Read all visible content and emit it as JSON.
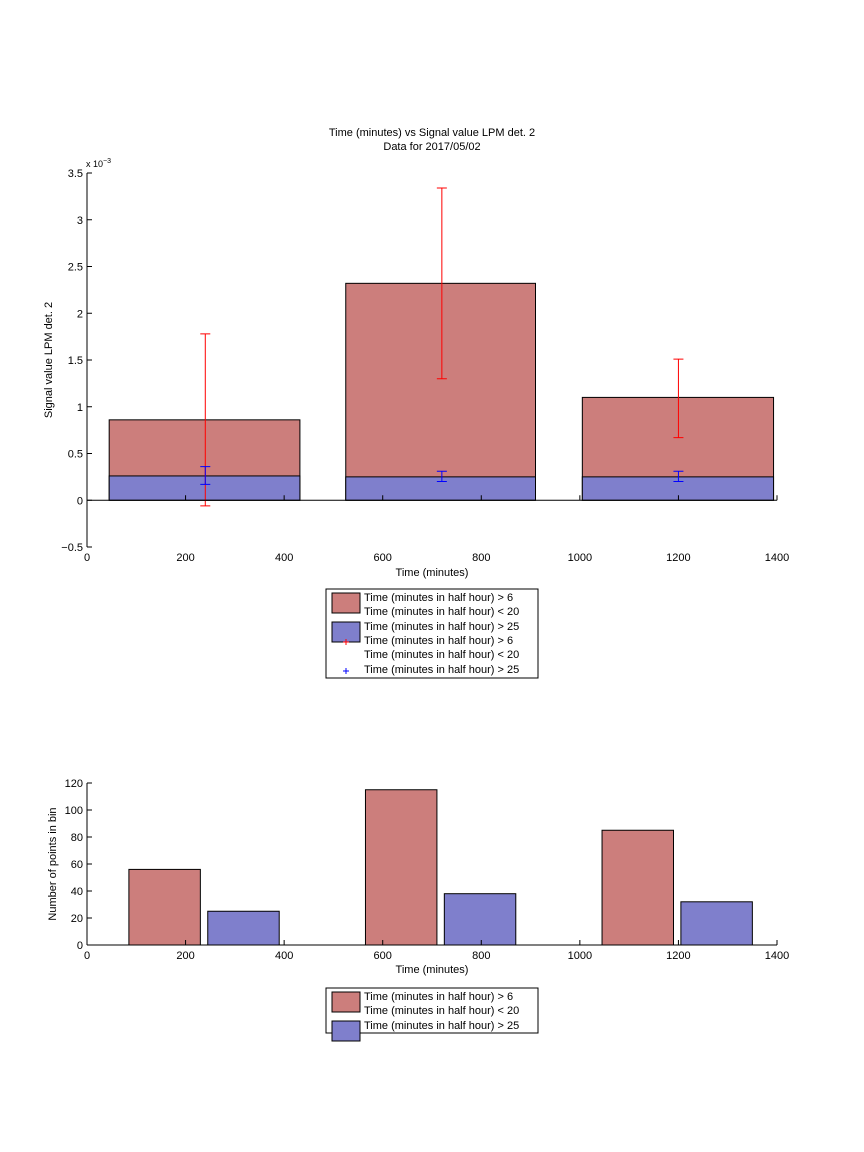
{
  "chart_data": [
    {
      "type": "bar",
      "title": "Time (minutes) vs Signal value LPM det. 2",
      "subtitle": "Data for 2017/05/02",
      "xlabel": "Time (minutes)",
      "ylabel": "Signal value LPM det. 2",
      "y_exponent_label": "x 10",
      "y_exponent_power": "−3",
      "xlim": [
        0,
        1400
      ],
      "ylim": [
        -0.5,
        3.5
      ],
      "y_scale_factor": 0.001,
      "grid": false,
      "legend_position": "below",
      "x_ticks": [
        "0",
        "200",
        "400",
        "600",
        "800",
        "1000",
        "1200",
        "1400"
      ],
      "x_tick_values": [
        0,
        200,
        400,
        600,
        800,
        1000,
        1200,
        1400
      ],
      "y_ticks": [
        "−0.5",
        "0",
        "0.5",
        "1",
        "1.5",
        "2",
        "2.5",
        "3",
        "3.5"
      ],
      "y_tick_values": [
        -0.5,
        0,
        0.5,
        1,
        1.5,
        2,
        2.5,
        3,
        3.5
      ],
      "bar_layout": "overlaid",
      "bins": [
        {
          "x_start": 45,
          "x_end": 432
        },
        {
          "x_start": 525,
          "x_end": 910
        },
        {
          "x_start": 1005,
          "x_end": 1393
        }
      ],
      "series": [
        {
          "name": "Time (minutes in half hour) > 6",
          "name_line2": "Time (minutes in half hour) < 20",
          "color": "#cc7e7c",
          "values": [
            0.86,
            2.32,
            1.1
          ],
          "errorbars": {
            "color": "#ff0000",
            "x": [
              240,
              720,
              1200
            ],
            "mean": [
              0.86,
              2.32,
              1.1
            ],
            "upper": [
              1.78,
              3.34,
              1.51
            ],
            "lower": [
              -0.06,
              1.3,
              0.67
            ]
          }
        },
        {
          "name": "Time (minutes in half hour) > 25",
          "color": "#7f7fcc",
          "values": [
            0.26,
            0.25,
            0.25
          ],
          "errorbars": {
            "color": "#0000ff",
            "x": [
              240,
              720,
              1200
            ],
            "mean": [
              0.26,
              0.25,
              0.25
            ],
            "upper": [
              0.36,
              0.31,
              0.31
            ],
            "lower": [
              0.17,
              0.2,
              0.2
            ]
          }
        }
      ],
      "legend_entries": [
        {
          "kind": "patch",
          "color": "#cc7e7c",
          "line1": "Time (minutes in half hour) > 6",
          "line2": "Time (minutes in half hour) < 20"
        },
        {
          "kind": "patch",
          "color": "#7f7fcc",
          "line1": "Time (minutes in half hour) > 25",
          "line2": ""
        },
        {
          "kind": "marker",
          "color": "#ff0000",
          "line1": "Time (minutes in half hour) > 6",
          "line2": "Time (minutes in half hour) < 20"
        },
        {
          "kind": "marker",
          "color": "#0000ff",
          "line1": "Time (minutes in half hour) > 25",
          "line2": ""
        }
      ]
    },
    {
      "type": "bar",
      "title": "",
      "xlabel": "Time (minutes)",
      "ylabel": "Number of points in bin",
      "xlim": [
        0,
        1400
      ],
      "ylim": [
        0,
        120
      ],
      "grid": false,
      "legend_position": "below",
      "x_ticks": [
        "0",
        "200",
        "400",
        "600",
        "800",
        "1000",
        "1200",
        "1400"
      ],
      "x_tick_values": [
        0,
        200,
        400,
        600,
        800,
        1000,
        1200,
        1400
      ],
      "y_ticks": [
        "0",
        "20",
        "40",
        "60",
        "80",
        "100",
        "120"
      ],
      "y_tick_values": [
        0,
        20,
        40,
        60,
        80,
        100,
        120
      ],
      "bar_layout": "grouped",
      "series": [
        {
          "name": "Time (minutes in half hour) > 6",
          "name_line2": "Time (minutes in half hour) < 20",
          "color": "#cc7e7c",
          "x_start": [
            85,
            565,
            1045
          ],
          "x_end": [
            230,
            710,
            1190
          ],
          "values": [
            56,
            115,
            85
          ]
        },
        {
          "name": "Time (minutes in half hour) > 25",
          "color": "#7f7fcc",
          "x_start": [
            245,
            725,
            1205
          ],
          "x_end": [
            390,
            870,
            1350
          ],
          "values": [
            25,
            38,
            32
          ]
        }
      ],
      "legend_entries": [
        {
          "kind": "patch",
          "color": "#cc7e7c",
          "line1": "Time (minutes in half hour) > 6",
          "line2": "Time (minutes in half hour) < 20"
        },
        {
          "kind": "patch",
          "color": "#7f7fcc",
          "line1": "Time (minutes in half hour) > 25",
          "line2": ""
        }
      ]
    }
  ]
}
